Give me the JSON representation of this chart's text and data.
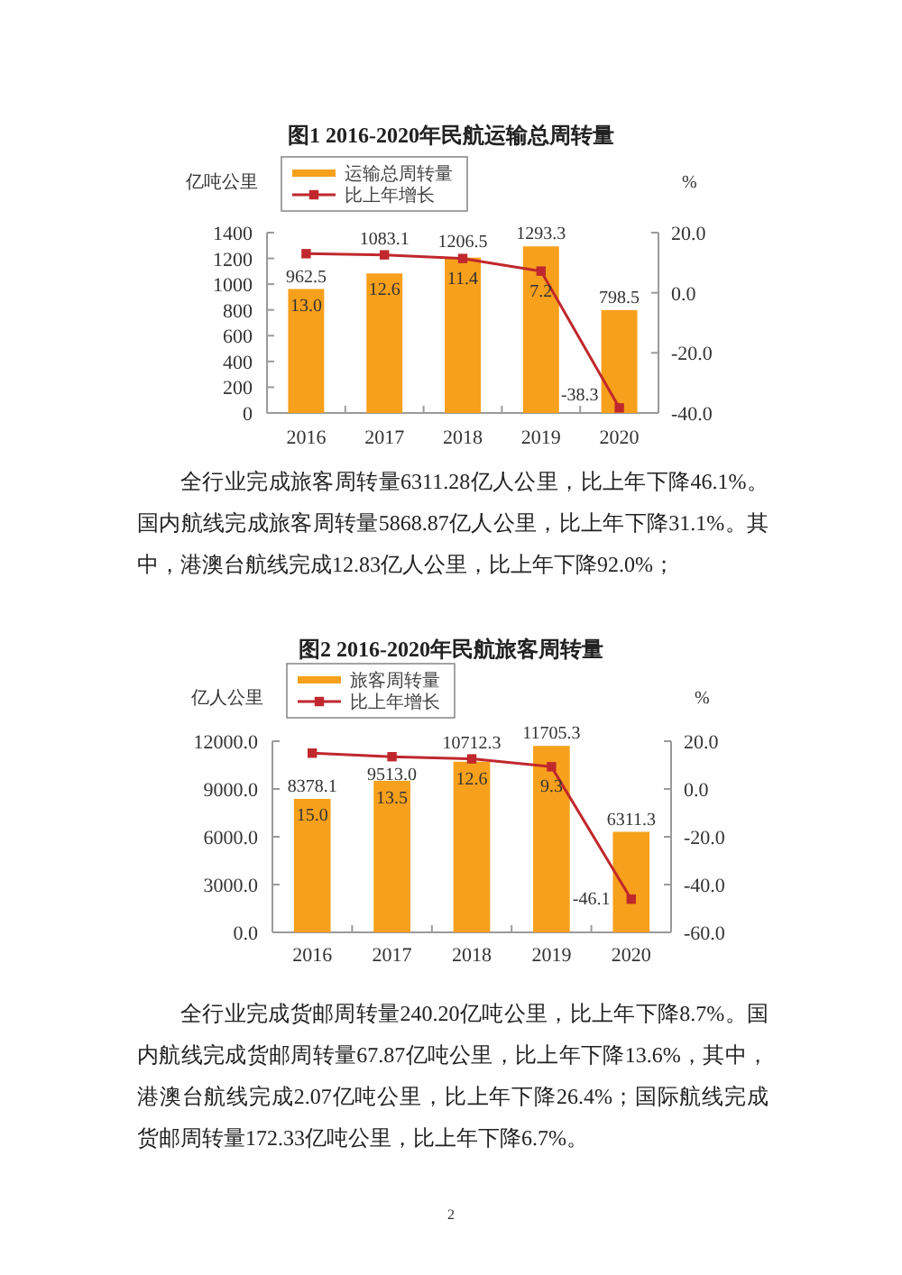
{
  "chart_data": [
    {
      "type": "bar",
      "title": "图1 2016-2020年民航运输总周转量",
      "ylabel": "亿吨公里",
      "y2label": "%",
      "categories": [
        "2016",
        "2017",
        "2018",
        "2019",
        "2020"
      ],
      "series": [
        {
          "name": "运输总周转量",
          "color": "#f7a01c",
          "values": [
            962.5,
            1083.1,
            1206.5,
            1293.3,
            798.5
          ],
          "value_labels": [
            "962.5",
            "1083.1",
            "1206.5",
            "1293.3",
            "798.5"
          ]
        },
        {
          "name": "比上年增长",
          "type": "line",
          "axis": "y2",
          "color": "#c0282d",
          "values": [
            13.0,
            12.6,
            11.4,
            7.2,
            -38.3
          ],
          "value_labels": [
            "13.0",
            "12.6",
            "11.4",
            "7.2",
            "-38.3"
          ]
        }
      ],
      "ylim": [
        0,
        1400
      ],
      "yticks": [
        0,
        200,
        400,
        600,
        800,
        1000,
        1200,
        1400
      ],
      "y2lim": [
        -40,
        20
      ],
      "y2ticks": [
        {
          "value": -40,
          "label": "-40.0"
        },
        {
          "value": -20,
          "label": "-20.0"
        },
        {
          "value": 0,
          "label": "0.0"
        },
        {
          "value": 20,
          "label": "20.0"
        }
      ],
      "marker": "square",
      "legend": "top left",
      "annotations": [
        "全行业完成旅客周转量6311.28亿人公里，比上年下降46.1%。国内航线完成旅客周转量5868.87亿人公里，比上年下降31.1%。其中，港澳台航线完成12.83亿人公里，比上年下降92.0%；"
      ]
    },
    {
      "type": "bar",
      "title": "图2 2016-2020年民航旅客周转量",
      "ylabel": "亿人公里",
      "y2label": "%",
      "categories": [
        "2016",
        "2017",
        "2018",
        "2019",
        "2020"
      ],
      "series": [
        {
          "name": "旅客周转量",
          "color": "#f7a01c",
          "values": [
            8378.1,
            9513.0,
            10712.3,
            11705.3,
            6311.3
          ],
          "value_labels": [
            "8378.1",
            "9513.0",
            "10712.3",
            "11705.3",
            "6311.3"
          ]
        },
        {
          "name": "比上年增长",
          "type": "line",
          "axis": "y2",
          "color": "#c0282d",
          "values": [
            15.0,
            13.5,
            12.6,
            9.3,
            -46.1
          ],
          "value_labels": [
            "15.0",
            "13.5",
            "12.6",
            "9.3",
            "-46.1"
          ]
        }
      ],
      "ylim": [
        0,
        12000
      ],
      "yticks": [
        {
          "value": 0,
          "label": "0.0"
        },
        {
          "value": 3000,
          "label": "3000.0"
        },
        {
          "value": 6000,
          "label": "6000.0"
        },
        {
          "value": 9000,
          "label": "9000.0"
        },
        {
          "value": 12000,
          "label": "12000.0"
        }
      ],
      "y2lim": [
        -60,
        20
      ],
      "y2ticks": [
        {
          "value": -60,
          "label": "-60.0"
        },
        {
          "value": -40,
          "label": "-40.0"
        },
        {
          "value": -20,
          "label": "-20.0"
        },
        {
          "value": 0,
          "label": "0.0"
        },
        {
          "value": 20,
          "label": "20.0"
        }
      ],
      "marker": "square",
      "legend": "top left",
      "annotations": [
        "全行业完成货邮周转量240.20亿吨公里，比上年下降8.7%。国内航线完成货邮周转量67.87亿吨公里，比上年下降13.6%，其中，港澳台航线完成2.07亿吨公里，比上年下降26.4%；国际航线完成货邮周转量172.33亿吨公里，比上年下降6.7%。",
        "2"
      ]
    }
  ]
}
